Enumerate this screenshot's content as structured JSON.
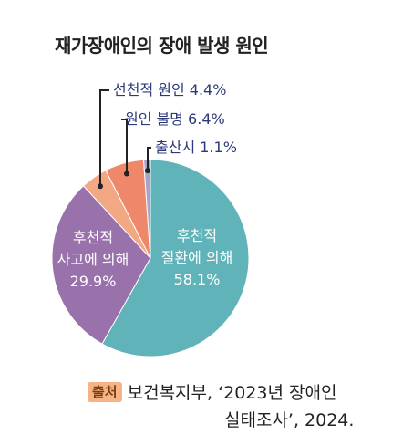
{
  "chart_data": {
    "type": "pie",
    "title": "재가장애인의 장애 발생 원인",
    "slices": [
      {
        "label": "후천적 질환에 의해",
        "label_lines": [
          "후천적",
          "질환에 의해"
        ],
        "value": 58.1,
        "value_text": "58.1%",
        "color": "#5fb3b9",
        "label_position": "inside"
      },
      {
        "label": "후천적 사고에 의해",
        "label_lines": [
          "후천적",
          "사고에 의해"
        ],
        "value": 29.9,
        "value_text": "29.9%",
        "color": "#9a72ab",
        "label_position": "inside"
      },
      {
        "label": "선천적 원인",
        "label_lines": [
          "선천적 원인"
        ],
        "value": 4.4,
        "value_text": "4.4%",
        "color": "#f2a882",
        "label_position": "outside"
      },
      {
        "label": "원인 불명",
        "label_lines": [
          "원인 불명"
        ],
        "value": 6.4,
        "value_text": "6.4%",
        "color": "#ef876b",
        "label_position": "outside"
      },
      {
        "label": "출산시",
        "label_lines": [
          "출산시"
        ],
        "value": 1.1,
        "value_text": "1.1%",
        "color": "#a9a3c8",
        "label_position": "outside"
      }
    ],
    "start_angle": "12 o'clock",
    "direction": "clockwise",
    "legend": "none",
    "outside_label_color": "#2c3a7a"
  },
  "source": {
    "badge": "출처",
    "line1": "보건복지부, ‘2023년 장애인",
    "line2": "실태조사’, 2024."
  }
}
